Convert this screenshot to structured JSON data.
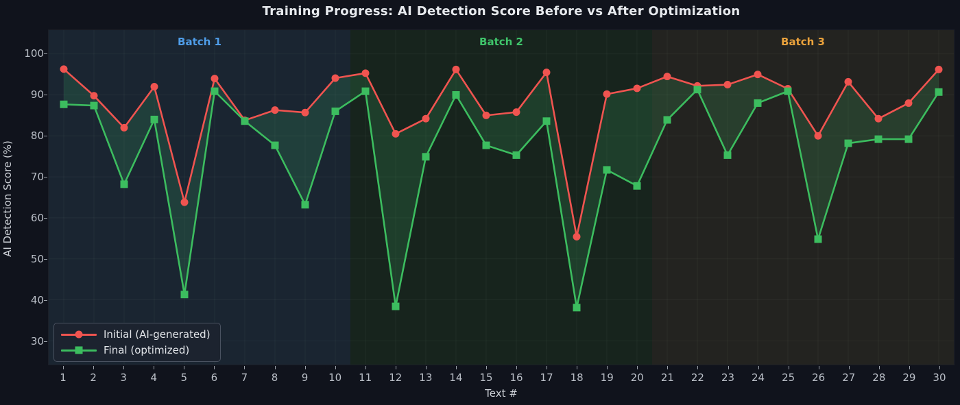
{
  "title": "Training Progress: AI Detection Score Before vs After Optimization",
  "chart_data": {
    "type": "line",
    "x": [
      1,
      2,
      3,
      4,
      5,
      6,
      7,
      8,
      9,
      10,
      11,
      12,
      13,
      14,
      15,
      16,
      17,
      18,
      19,
      20,
      21,
      22,
      23,
      24,
      25,
      26,
      27,
      28,
      29,
      30
    ],
    "series": [
      {
        "name": "Initial (AI-generated)",
        "color": "#f05450",
        "marker": "circle",
        "values": [
          96.3,
          89.8,
          82.0,
          92.0,
          63.8,
          94.0,
          83.8,
          86.3,
          85.7,
          94.1,
          95.3,
          80.5,
          84.2,
          96.2,
          85.0,
          85.8,
          95.5,
          55.4,
          90.2,
          91.6,
          94.5,
          92.2,
          92.5,
          95.0,
          91.5,
          80.0,
          93.2,
          84.2,
          88.0,
          96.2
        ]
      },
      {
        "name": "Final (optimized)",
        "color": "#3cbd5f",
        "marker": "square",
        "values": [
          87.7,
          87.4,
          68.2,
          84.0,
          41.3,
          90.9,
          83.6,
          77.7,
          63.2,
          86.0,
          90.9,
          38.4,
          74.9,
          90.0,
          77.7,
          75.3,
          83.6,
          38.1,
          71.7,
          67.8,
          83.9,
          91.3,
          75.3,
          88.0,
          90.9,
          54.8,
          78.2,
          79.2,
          79.2,
          90.7
        ]
      }
    ],
    "fill_between_color": "rgba(62,170,100,0.20)",
    "bands": [
      {
        "label": "Batch 1",
        "from": 0.5,
        "to": 10.5,
        "bg": "#1a2531",
        "label_color": "#4f9de8"
      },
      {
        "label": "Batch 2",
        "from": 10.5,
        "to": 20.5,
        "bg": "#17241d",
        "label_color": "#3fc46a"
      },
      {
        "label": "Batch 3",
        "from": 20.5,
        "to": 30.5,
        "bg": "#232320",
        "label_color": "#eaa23c"
      }
    ],
    "xlabel": "Text #",
    "ylabel": "AI Detection Score (%)",
    "xlim": [
      0.5,
      30.5
    ],
    "ylim": [
      24.2,
      105.8
    ],
    "yticks": [
      30,
      40,
      50,
      60,
      70,
      80,
      90,
      100
    ],
    "grid": "faint",
    "legend_position": "lower left"
  },
  "colors": {
    "figure_bg": "#10131c",
    "tick_label": "#b9bec6",
    "title": "#e7eaee",
    "gridline": "rgba(210,245,225,0.05)"
  }
}
